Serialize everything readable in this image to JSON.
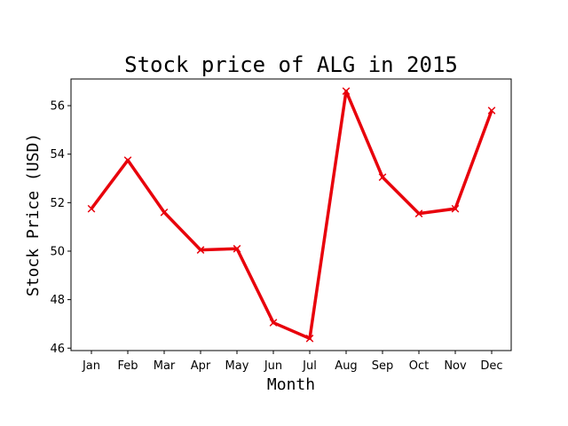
{
  "chart_data": {
    "type": "line",
    "title": "Stock price of ALG in 2015",
    "xlabel": "Month",
    "ylabel": "Stock Price (USD)",
    "categories": [
      "Jan",
      "Feb",
      "Mar",
      "Apr",
      "May",
      "Jun",
      "Jul",
      "Aug",
      "Sep",
      "Oct",
      "Nov",
      "Dec"
    ],
    "series": [
      {
        "values": [
          51.75,
          53.75,
          51.6,
          50.05,
          50.1,
          47.05,
          46.4,
          56.6,
          53.05,
          51.55,
          51.75,
          55.8
        ],
        "color": "#e8000b",
        "marker": "x"
      }
    ],
    "ylim": [
      45.9,
      57.1
    ],
    "yticks": [
      46,
      48,
      50,
      52,
      54,
      56
    ],
    "grid": false
  }
}
